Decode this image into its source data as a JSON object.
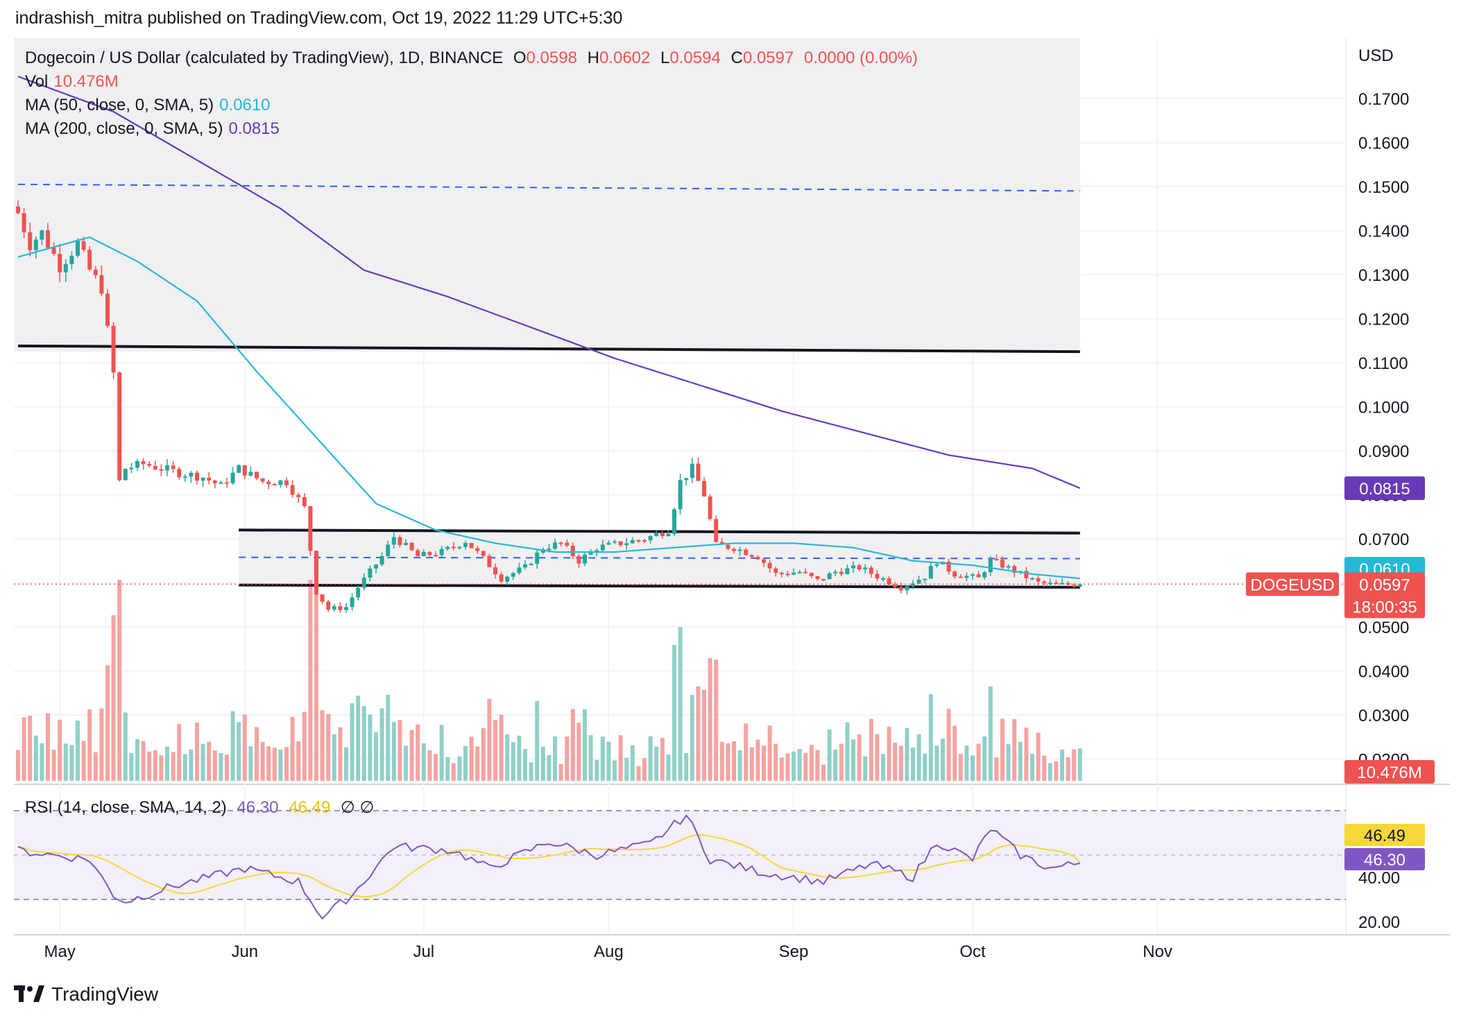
{
  "header": {
    "publisher_line": "indrashish_mitra published on TradingView.com, Oct 19, 2022 11:29 UTC+5:30"
  },
  "legend": {
    "symbol": "Dogecoin / US Dollar (calculated by TradingView), 1D, BINANCE",
    "o_label": "O",
    "o_value": "0.0598",
    "h_label": "H",
    "h_value": "0.0602",
    "l_label": "L",
    "l_value": "0.0594",
    "c_label": "C",
    "c_value": "0.0597",
    "change": "0.0000 (0.00%)",
    "vol_label": "Vol",
    "vol_value": "10.476M",
    "ma50_label": "MA (50, close, 0, SMA, 5)",
    "ma50_value": "0.0610",
    "ma200_label": "MA (200, close, 0, SMA, 5)",
    "ma200_value": "0.0815",
    "rsi_label": "RSI (14, close, SMA, 14, 2)",
    "rsi_value": "46.30",
    "rsi_ma_value": "46.49",
    "rsi_extra": "∅ ∅"
  },
  "axis": {
    "currency": "USD",
    "price_ticks": [
      "0.1700",
      "0.1600",
      "0.1500",
      "0.1400",
      "0.1300",
      "0.1200",
      "0.1100",
      "0.1000",
      "0.0900",
      "0.0800",
      "0.0700",
      "0.0600",
      "0.0500",
      "0.0400",
      "0.0300",
      "0.0200"
    ],
    "rsi_ticks": [
      "60.00",
      "40.00",
      "20.00"
    ],
    "months": [
      "May",
      "Jun",
      "Jul",
      "Aug",
      "Sep",
      "Oct",
      "Nov"
    ]
  },
  "badges": {
    "ma200": "0.0815",
    "ma50": "0.0610",
    "symbol_tag": "DOGEUSD",
    "last_price": "0.0597",
    "countdown": "18:00:35",
    "volume": "10.476M",
    "rsi_ma": "46.49",
    "rsi": "46.30"
  },
  "colors": {
    "up": "#26a69a",
    "down": "#ef5350",
    "up_vol": "#8fd0c9",
    "down_vol": "#f5a3a1",
    "ma50": "#26b8d4",
    "ma200": "#673ab7",
    "rsi": "#7e57c2",
    "rsi_ma": "#f5d73a",
    "zone": "#f0f0f2",
    "level_dash": "#2962ff"
  },
  "footer": {
    "brand": "TradingView"
  },
  "chart_data": {
    "type": "candlestick",
    "title": "Dogecoin / US Dollar (calculated by TradingView), 1D, BINANCE",
    "y_axis": {
      "unit": "USD",
      "ylim": [
        0.018,
        0.178
      ]
    },
    "x_axis": {
      "start": "2022-04-24",
      "end": "2022-10-19",
      "months": [
        "May",
        "Jun",
        "Jul",
        "Aug",
        "Sep",
        "Oct",
        "Nov"
      ]
    },
    "grid": true,
    "close_path": [
      [
        "2022-04-24",
        0.144
      ],
      [
        "2022-04-26",
        0.137
      ],
      [
        "2022-04-28",
        0.1395
      ],
      [
        "2022-05-01",
        0.132
      ],
      [
        "2022-05-04",
        0.137
      ],
      [
        "2022-05-06",
        0.131
      ],
      [
        "2022-05-08",
        0.127
      ],
      [
        "2022-05-10",
        0.1075
      ],
      [
        "2022-05-11",
        0.083
      ],
      [
        "2022-05-12",
        0.086
      ],
      [
        "2022-05-15",
        0.087
      ],
      [
        "2022-05-18",
        0.086
      ],
      [
        "2022-05-21",
        0.085
      ],
      [
        "2022-05-25",
        0.084
      ],
      [
        "2022-05-28",
        0.082
      ],
      [
        "2022-05-31",
        0.086
      ],
      [
        "2022-06-04",
        0.083
      ],
      [
        "2022-06-08",
        0.083
      ],
      [
        "2022-06-11",
        0.077
      ],
      [
        "2022-06-13",
        0.058
      ],
      [
        "2022-06-15",
        0.054
      ],
      [
        "2022-06-18",
        0.0545
      ],
      [
        "2022-06-20",
        0.059
      ],
      [
        "2022-06-24",
        0.066
      ],
      [
        "2022-06-26",
        0.0705
      ],
      [
        "2022-06-30",
        0.066
      ],
      [
        "2022-07-04",
        0.067
      ],
      [
        "2022-07-08",
        0.0695
      ],
      [
        "2022-07-11",
        0.0655
      ],
      [
        "2022-07-14",
        0.061
      ],
      [
        "2022-07-18",
        0.0635
      ],
      [
        "2022-07-21",
        0.068
      ],
      [
        "2022-07-24",
        0.069
      ],
      [
        "2022-07-27",
        0.065
      ],
      [
        "2022-07-30",
        0.068
      ],
      [
        "2022-08-03",
        0.069
      ],
      [
        "2022-08-07",
        0.07
      ],
      [
        "2022-08-11",
        0.072
      ],
      [
        "2022-08-13",
        0.083
      ],
      [
        "2022-08-15",
        0.086
      ],
      [
        "2022-08-17",
        0.08
      ],
      [
        "2022-08-19",
        0.0685
      ],
      [
        "2022-08-22",
        0.068
      ],
      [
        "2022-08-26",
        0.066
      ],
      [
        "2022-08-29",
        0.062
      ],
      [
        "2022-09-02",
        0.0625
      ],
      [
        "2022-09-05",
        0.0605
      ],
      [
        "2022-09-08",
        0.0625
      ],
      [
        "2022-09-12",
        0.0635
      ],
      [
        "2022-09-15",
        0.0615
      ],
      [
        "2022-09-19",
        0.059
      ],
      [
        "2022-09-23",
        0.0615
      ],
      [
        "2022-09-25",
        0.065
      ],
      [
        "2022-09-28",
        0.062
      ],
      [
        "2022-10-02",
        0.061
      ],
      [
        "2022-10-04",
        0.065
      ],
      [
        "2022-10-06",
        0.064
      ],
      [
        "2022-10-09",
        0.062
      ],
      [
        "2022-10-12",
        0.06
      ],
      [
        "2022-10-15",
        0.0595
      ],
      [
        "2022-10-19",
        0.0597
      ]
    ],
    "series": [
      {
        "name": "MA (50, close, 0, SMA, 5)",
        "last": 0.061,
        "points": [
          [
            "2022-04-24",
            0.134
          ],
          [
            "2022-05-06",
            0.1385
          ],
          [
            "2022-05-14",
            0.133
          ],
          [
            "2022-05-24",
            0.124
          ],
          [
            "2022-06-03",
            0.108
          ],
          [
            "2022-06-13",
            0.093
          ],
          [
            "2022-06-23",
            0.078
          ],
          [
            "2022-07-03",
            0.072
          ],
          [
            "2022-07-13",
            0.069
          ],
          [
            "2022-07-23",
            0.067
          ],
          [
            "2022-08-02",
            0.067
          ],
          [
            "2022-08-12",
            0.068
          ],
          [
            "2022-08-22",
            0.069
          ],
          [
            "2022-09-01",
            0.069
          ],
          [
            "2022-09-11",
            0.068
          ],
          [
            "2022-09-21",
            0.065
          ],
          [
            "2022-10-01",
            0.064
          ],
          [
            "2022-10-11",
            0.062
          ],
          [
            "2022-10-19",
            0.061
          ]
        ]
      },
      {
        "name": "MA (200, close, 0, SMA, 5)",
        "last": 0.0815,
        "points": [
          [
            "2022-04-24",
            0.175
          ],
          [
            "2022-05-10",
            0.167
          ],
          [
            "2022-05-24",
            0.156
          ],
          [
            "2022-06-07",
            0.145
          ],
          [
            "2022-06-21",
            0.131
          ],
          [
            "2022-07-05",
            0.125
          ],
          [
            "2022-07-19",
            0.118
          ],
          [
            "2022-08-02",
            0.111
          ],
          [
            "2022-08-16",
            0.105
          ],
          [
            "2022-08-30",
            0.099
          ],
          [
            "2022-09-13",
            0.094
          ],
          [
            "2022-09-27",
            0.089
          ],
          [
            "2022-10-11",
            0.086
          ],
          [
            "2022-10-19",
            0.0815
          ]
        ]
      }
    ],
    "levels": [
      {
        "kind": "solid",
        "from": "2022-04-24",
        "to": "2022-10-19",
        "from_value": 0.1138,
        "to_value": 0.1125
      },
      {
        "kind": "solid",
        "from": "2022-05-31",
        "to": "2022-10-19",
        "from_value": 0.072,
        "to_value": 0.0713
      },
      {
        "kind": "solid",
        "from": "2022-05-31",
        "to": "2022-10-19",
        "from_value": 0.0595,
        "to_value": 0.059
      },
      {
        "kind": "dashed",
        "from": "2022-04-24",
        "to": "2022-10-19",
        "from_value": 0.1505,
        "to_value": 0.149
      },
      {
        "kind": "dashed",
        "from": "2022-05-31",
        "to": "2022-10-19",
        "from_value": 0.0658,
        "to_value": 0.0655
      }
    ],
    "rsi": {
      "name": "RSI (14, close, SMA, 14, 2)",
      "last": 46.3,
      "ma_last": 46.49,
      "ylim": [
        15,
        75
      ],
      "bands": [
        30,
        70
      ],
      "points": [
        [
          "2022-04-24",
          52
        ],
        [
          "2022-05-06",
          48
        ],
        [
          "2022-05-10",
          32
        ],
        [
          "2022-05-12",
          29
        ],
        [
          "2022-05-20",
          36
        ],
        [
          "2022-06-01",
          44
        ],
        [
          "2022-06-10",
          38
        ],
        [
          "2022-06-14",
          22
        ],
        [
          "2022-06-19",
          32
        ],
        [
          "2022-06-26",
          54
        ],
        [
          "2022-07-06",
          52
        ],
        [
          "2022-07-12",
          44
        ],
        [
          "2022-07-22",
          56
        ],
        [
          "2022-07-30",
          50
        ],
        [
          "2022-08-08",
          55
        ],
        [
          "2022-08-14",
          68
        ],
        [
          "2022-08-18",
          48
        ],
        [
          "2022-08-27",
          42
        ],
        [
          "2022-09-06",
          38
        ],
        [
          "2022-09-14",
          46
        ],
        [
          "2022-09-21",
          40
        ],
        [
          "2022-09-25",
          56
        ],
        [
          "2022-10-01",
          48
        ],
        [
          "2022-10-04",
          62
        ],
        [
          "2022-10-09",
          50
        ],
        [
          "2022-10-14",
          44
        ],
        [
          "2022-10-19",
          46.3
        ]
      ]
    },
    "volume": {
      "last": "10.476M"
    }
  }
}
